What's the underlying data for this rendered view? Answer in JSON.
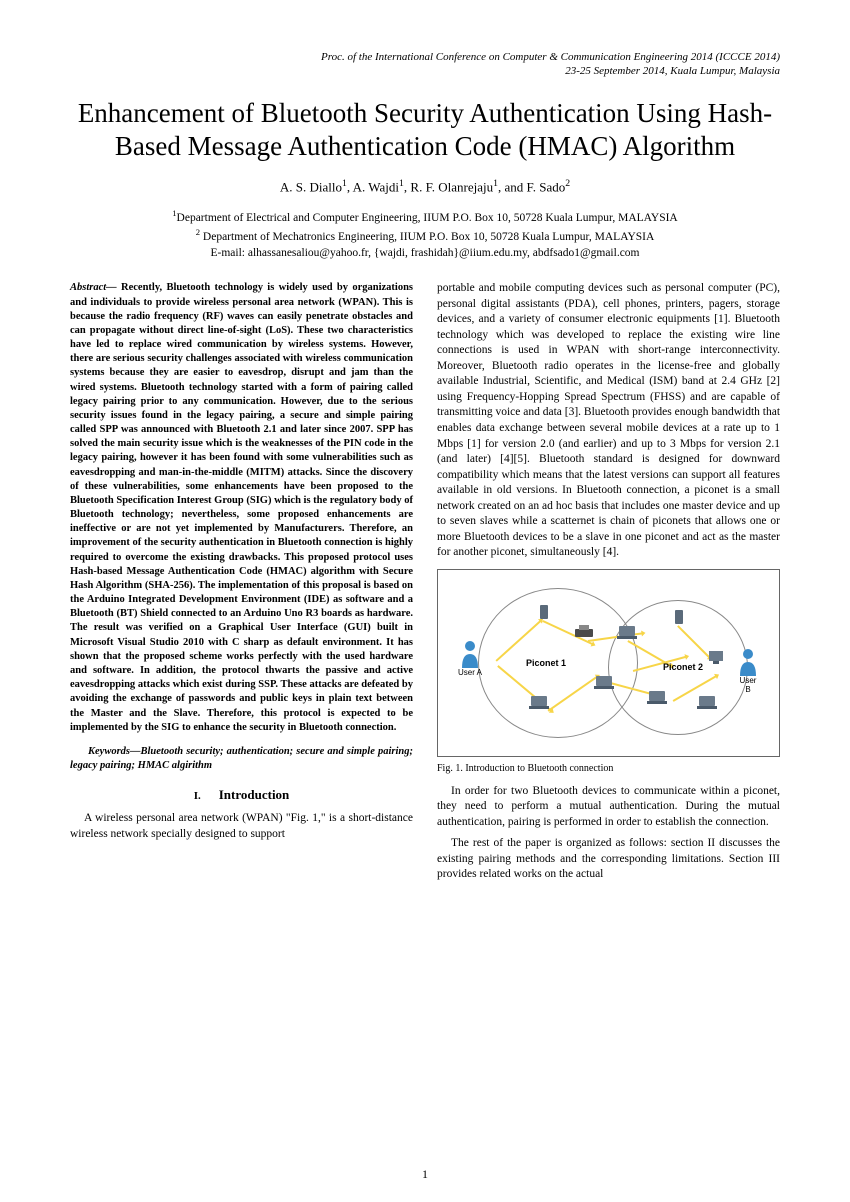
{
  "header": {
    "line1": "Proc. of the International Conference on Computer & Communication Engineering 2014 (ICCCE 2014)",
    "line2": "23-25 September 2014, Kuala Lumpur, Malaysia"
  },
  "title": "Enhancement of Bluetooth Security Authentication Using Hash-Based Message Authentication Code (HMAC) Algorithm",
  "authors_html": "A. S. Diallo<sup>1</sup>, A. Wajdi<sup>1</sup>, R. F. Olanrejaju<sup>1</sup>, and F. Sado<sup>2</sup>",
  "affiliations": {
    "line1_html": "<sup>1</sup>Department of Electrical and Computer Engineering, IIUM P.O. Box 10, 50728 Kuala Lumpur, MALAYSIA",
    "line2_html": "<sup>2</sup> Department of Mechatronics Engineering, IIUM P.O. Box 10, 50728 Kuala Lumpur, MALAYSIA",
    "line3": "E-mail: alhassanesaliou@yahoo.fr, {wajdi, frashidah}@iium.edu.my, abdfsado1@gmail.com"
  },
  "abstract": {
    "label": "Abstract—",
    "text": " Recently, Bluetooth technology is widely used by organizations and individuals to provide wireless personal area network (WPAN). This is because the radio frequency (RF) waves can easily penetrate obstacles and can propagate without direct line-of-sight (LoS). These two characteristics have led to replace wired communication by wireless systems. However, there are serious security challenges associated with wireless communication systems because they are easier to eavesdrop, disrupt and jam than the wired systems. Bluetooth technology started with a form of pairing called legacy pairing prior to any communication. However, due to the serious security issues found in the legacy pairing, a secure and simple pairing called SPP was announced with Bluetooth 2.1 and later since 2007. SPP has solved the main security issue which is the weaknesses of the PIN code in the legacy pairing, however it has been found with some vulnerabilities such as eavesdropping and man-in-the-middle (MITM) attacks. Since the discovery of these vulnerabilities, some enhancements have been proposed to the Bluetooth Specification Interest Group (SIG) which is the regulatory body of Bluetooth technology; nevertheless, some proposed enhancements are ineffective or are not yet implemented by Manufacturers. Therefore, an improvement of the security authentication in Bluetooth connection is highly required to overcome the existing drawbacks. This proposed protocol uses Hash-based Message Authentication Code (HMAC) algorithm with Secure Hash Algorithm (SHA-256). The implementation of this proposal is based on the Arduino Integrated Development Environment (IDE) as software and a Bluetooth (BT) Shield connected to an Arduino Uno R3 boards as hardware. The result was verified on a Graphical User Interface (GUI) built in Microsoft Visual Studio 2010 with C sharp as default environment. It has shown that the proposed scheme works perfectly with the used hardware and software. In addition, the protocol thwarts the passive and active eavesdropping attacks which exist during SSP. These attacks are defeated by avoiding the exchange of passwords and public keys in plain text between the Master and the Slave. Therefore, this protocol is expected to be implemented by the SIG to enhance the security in Bluetooth connection."
  },
  "keywords": "Keywords—Bluetooth security; authentication; secure and simple pairing; legacy pairing; HMAC algirithm",
  "section1": {
    "num": "I.",
    "heading": "Introduction",
    "p1": "A wireless personal area network (WPAN) \"Fig. 1,\" is a short-distance wireless network specially designed to support",
    "p2": "portable and mobile computing devices such as personal computer (PC), personal digital assistants (PDA), cell phones, printers, pagers, storage devices,  and a variety of consumer electronic equipments [1]. Bluetooth technology which was developed to replace the existing wire line connections is used in WPAN with short-range interconnectivity. Moreover, Bluetooth radio operates in the license-free and globally available Industrial, Scientific, and Medical (ISM) band at 2.4 GHz [2] using Frequency-Hopping Spread Spectrum (FHSS) and are capable of transmitting voice and data [3]. Bluetooth provides enough bandwidth that enables data exchange between several mobile devices at a rate up to 1 Mbps [1] for version 2.0 (and earlier) and up to 3 Mbps for version 2.1 (and later) [4][5]. Bluetooth standard is designed for downward compatibility which means that the latest versions can support all features available in old versions. In Bluetooth connection, a piconet is a small network created on an ad hoc basis that includes one master device and up to seven slaves while a scatternet is chain of piconets that allows one or more Bluetooth devices to be a slave in one piconet and act as the master for another piconet, simultaneously [4].",
    "p3": "In order for two Bluetooth devices to communicate within a piconet, they need to perform a mutual authentication. During the mutual authentication, pairing is performed in order to establish the connection.",
    "p4": "The rest of the paper is organized as follows: section II discusses the existing pairing methods and the corresponding limitations. Section III provides related works on the actual"
  },
  "figure": {
    "caption": "Fig. 1.   Introduction to Bluetooth connection",
    "userA_label": "User A",
    "userB_label": "User B",
    "piconet1_label": "Piconet 1",
    "piconet2_label": "Piconet 2",
    "user_color": "#3a8bc9",
    "link_color": "#f7d548",
    "device_color": "#5a6a7a"
  },
  "page_number": "1"
}
